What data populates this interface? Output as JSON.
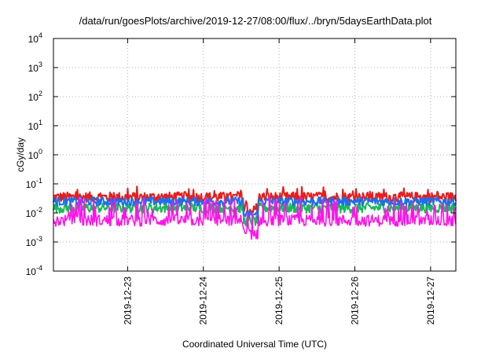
{
  "chart_data": {
    "type": "line",
    "title": "/data/run/goesPlots/archive/2019-12-27/08:00/flux/../bryn/5daysEarthData.plot",
    "xlabel": "Coordinated Universal Time (UTC)",
    "ylabel": "cGy/day",
    "y_scale": "log",
    "ylim": [
      0.0001,
      10000
    ],
    "y_ticks": [
      {
        "base": "10",
        "exp": "-4",
        "value": 0.0001
      },
      {
        "base": "10",
        "exp": "-3",
        "value": 0.001
      },
      {
        "base": "10",
        "exp": "-2",
        "value": 0.01
      },
      {
        "base": "10",
        "exp": "-1",
        "value": 0.1
      },
      {
        "base": "10",
        "exp": "0",
        "value": 1
      },
      {
        "base": "10",
        "exp": "1",
        "value": 10
      },
      {
        "base": "10",
        "exp": "2",
        "value": 100
      },
      {
        "base": "10",
        "exp": "3",
        "value": 1000
      },
      {
        "base": "10",
        "exp": "4",
        "value": 10000
      }
    ],
    "xlim": [
      "2019-12-22 00:30",
      "2019-12-27 08:00"
    ],
    "x_ticks": [
      "2019-12-23",
      "2019-12-24",
      "2019-12-25",
      "2019-12-26",
      "2019-12-27"
    ],
    "grid": true,
    "series": [
      {
        "color": "#e81c1c",
        "level": 0.035,
        "spread": 0.35
      },
      {
        "color": "#19b85a",
        "level": 0.015,
        "spread": 0.35
      },
      {
        "color": "#1e6ee8",
        "level": 0.025,
        "spread": 0.3
      },
      {
        "color": "#ff12e8",
        "level": 0.0055,
        "spread": 0.4
      }
    ],
    "dip": "2019-12-24 15:00"
  }
}
